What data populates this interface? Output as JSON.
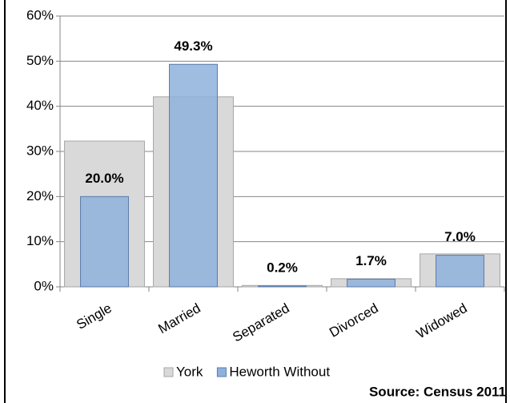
{
  "chart_data": {
    "type": "bar",
    "categories": [
      "Single",
      "Married",
      "Separated",
      "Divorced",
      "Widowed"
    ],
    "series": [
      {
        "name": "York",
        "color": "#d9d9d9",
        "values": [
          32.3,
          42.1,
          0.3,
          1.8,
          7.3
        ]
      },
      {
        "name": "Heworth Without",
        "color": "#8eb0dc",
        "values": [
          20.0,
          49.3,
          0.2,
          1.7,
          7.0
        ],
        "value_labels": [
          "20.0%",
          "49.3%",
          "0.2%",
          "1.7%",
          "7.0%"
        ]
      }
    ],
    "ylim": [
      0,
      60
    ],
    "yticks": [
      {
        "value": 0,
        "label": "0%"
      },
      {
        "value": 10,
        "label": "10%"
      },
      {
        "value": 20,
        "label": "20%"
      },
      {
        "value": 30,
        "label": "30%"
      },
      {
        "value": 40,
        "label": "40%"
      },
      {
        "value": 50,
        "label": "50%"
      },
      {
        "value": 60,
        "label": "60%"
      }
    ],
    "grid": true,
    "legend": "bottom",
    "source": "Source: Census 2011"
  }
}
